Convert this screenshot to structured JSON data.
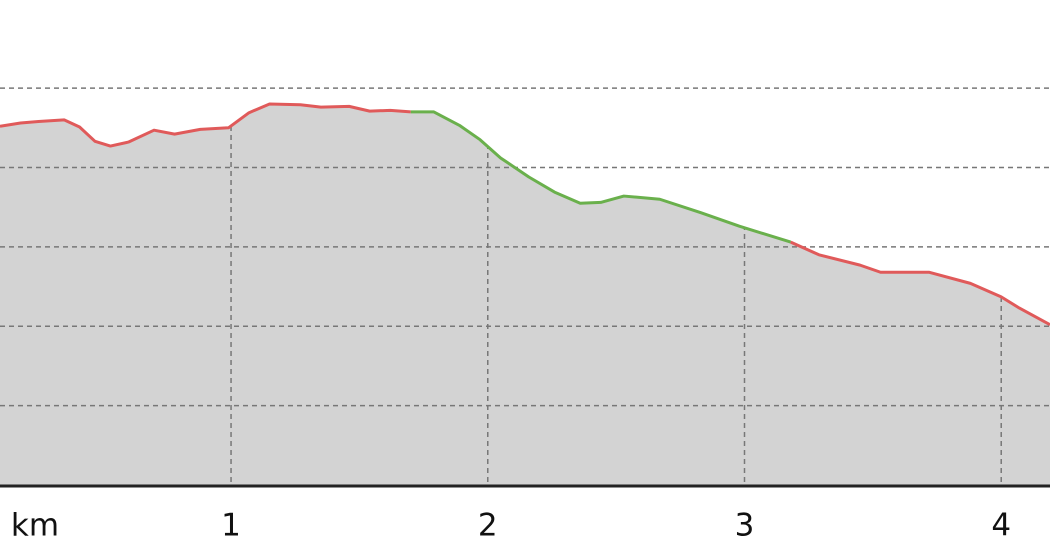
{
  "chart_data": {
    "type": "area-line",
    "x_label": "km",
    "xlim": [
      0.1,
      4.19
    ],
    "xticks": [
      1,
      2,
      3,
      4
    ],
    "ylim": [
      0,
      6.11
    ],
    "yticks": [
      1,
      2,
      3,
      4,
      5
    ],
    "grid": true,
    "fill_color": "#d3d3d3",
    "series": [
      {
        "color": "#e05a5a",
        "x": [
          0.1,
          0.18,
          0.25,
          0.35,
          0.41,
          0.47,
          0.53,
          0.6,
          0.7,
          0.78,
          0.88,
          0.99,
          1.07,
          1.15,
          1.27,
          1.35,
          1.46,
          1.54,
          1.62,
          1.7
        ],
        "values": [
          4.52,
          4.56,
          4.58,
          4.6,
          4.51,
          4.33,
          4.27,
          4.32,
          4.47,
          4.42,
          4.48,
          4.5,
          4.69,
          4.8,
          4.79,
          4.76,
          4.77,
          4.71,
          4.72,
          4.7
        ]
      },
      {
        "color": "#6ab04c",
        "x": [
          1.7,
          1.79,
          1.89,
          1.97,
          2.05,
          2.16,
          2.26,
          2.36,
          2.44,
          2.53,
          2.67,
          2.83,
          2.98,
          3.18
        ],
        "values": [
          4.7,
          4.7,
          4.53,
          4.35,
          4.12,
          3.88,
          3.69,
          3.55,
          3.56,
          3.64,
          3.6,
          3.43,
          3.26,
          3.06
        ]
      },
      {
        "color": "#e05a5a",
        "x": [
          3.18,
          3.29,
          3.45,
          3.53,
          3.72,
          3.88,
          4.0,
          4.07,
          4.19
        ],
        "values": [
          3.06,
          2.9,
          2.77,
          2.68,
          2.68,
          2.54,
          2.37,
          2.23,
          2.02
        ]
      }
    ]
  }
}
